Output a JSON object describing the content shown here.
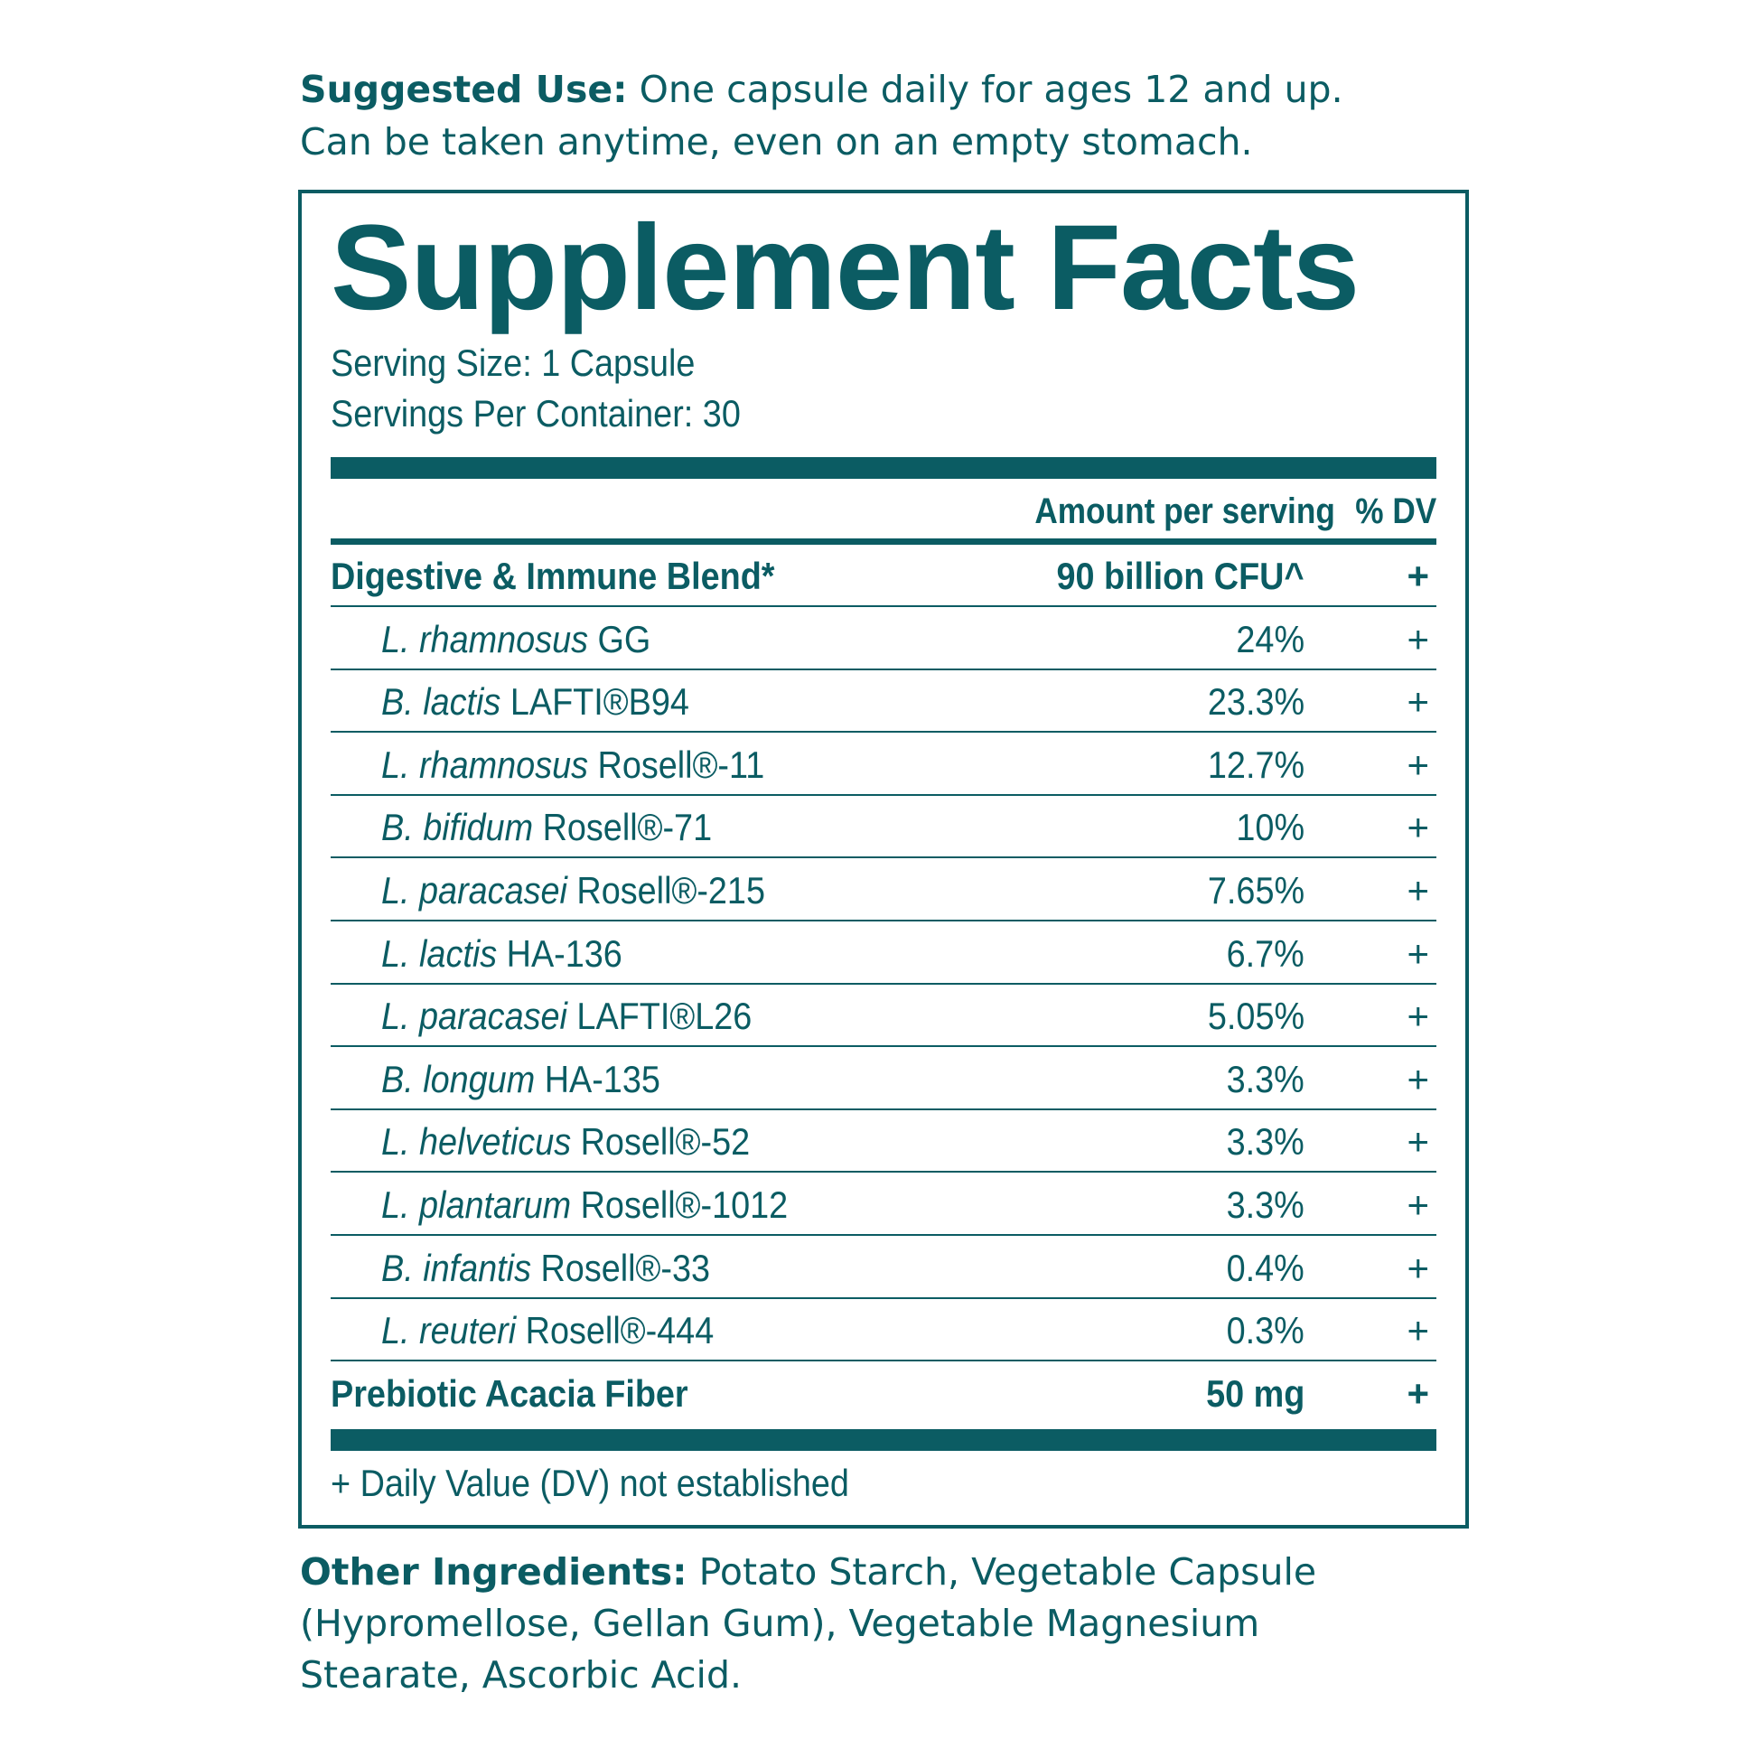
{
  "suggested_use": {
    "label": "Suggested Use:",
    "line1": " One capsule daily for ages 12 and up.",
    "line2": "Can be taken anytime, even on an empty stomach."
  },
  "facts": {
    "title": "Supplement Facts",
    "serving_size": "Serving Size: 1 Capsule",
    "servings_per_container": "Servings Per Container: 30",
    "col_amount": "Amount per serving",
    "col_dv": "% DV",
    "rows": [
      {
        "species": "",
        "strain": "Digestive & Immune Blend*",
        "amount": "90 billion CFU^",
        "dv": "+"
      },
      {
        "species": "L. rhamnosus",
        "strain": " GG",
        "amount": "24%",
        "dv": "+"
      },
      {
        "species": "B. lactis",
        "strain": " LAFTI®B94",
        "amount": "23.3%",
        "dv": "+"
      },
      {
        "species": "L. rhamnosus",
        "strain": " Rosell®-11",
        "amount": "12.7%",
        "dv": "+"
      },
      {
        "species": "B. bifidum",
        "strain": " Rosell®-71",
        "amount": "10%",
        "dv": "+"
      },
      {
        "species": "L. paracasei",
        "strain": " Rosell®-215",
        "amount": "7.65%",
        "dv": "+"
      },
      {
        "species": "L. lactis",
        "strain": " HA-136",
        "amount": "6.7%",
        "dv": "+"
      },
      {
        "species": "L. paracasei",
        "strain": " LAFTI®L26",
        "amount": "5.05%",
        "dv": "+"
      },
      {
        "species": "B. longum",
        "strain": " HA-135",
        "amount": "3.3%",
        "dv": "+"
      },
      {
        "species": "L. helveticus",
        "strain": " Rosell®-52",
        "amount": "3.3%",
        "dv": "+"
      },
      {
        "species": "L. plantarum",
        "strain": " Rosell®-1012",
        "amount": "3.3%",
        "dv": "+"
      },
      {
        "species": "B. infantis",
        "strain": " Rosell®-33",
        "amount": "0.4%",
        "dv": "+"
      },
      {
        "species": "L. reuteri",
        "strain": " Rosell®-444",
        "amount": "0.3%",
        "dv": "+"
      },
      {
        "species": "",
        "strain": "Prebiotic Acacia Fiber",
        "amount": "50 mg",
        "dv": "+"
      }
    ],
    "footnote": "+ Daily Value (DV) not established"
  },
  "other_ingredients": {
    "label": "Other Ingredients:",
    "line1": " Potato Starch, Vegetable Capsule",
    "line2": "(Hypromellose, Gellan Gum), Vegetable Magnesium",
    "line3": "Stearate, Ascorbic Acid."
  },
  "colors": {
    "teal": "#0b5c63"
  }
}
